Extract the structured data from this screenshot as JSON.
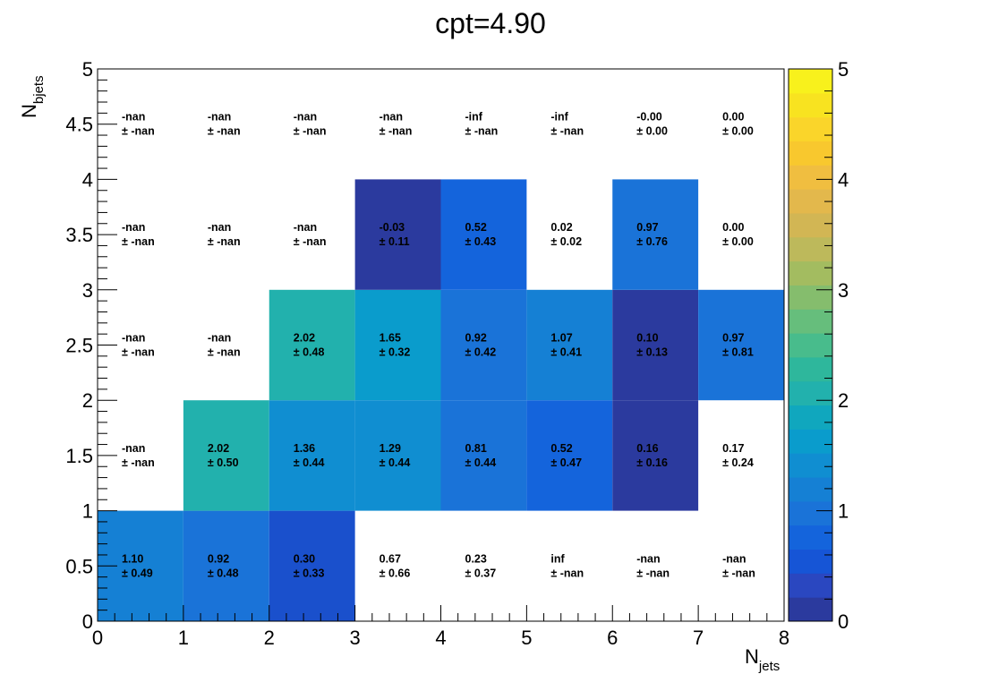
{
  "chart_data": {
    "type": "heatmap",
    "title": "cpt=4.90",
    "xlabel_main": "N",
    "xlabel_sub": "jets",
    "ylabel_main": "N",
    "ylabel_sub": "bjets",
    "xlim": [
      0,
      8
    ],
    "ylim": [
      0,
      5
    ],
    "zlim": [
      0,
      5
    ],
    "x_ticks": [
      "0",
      "1",
      "2",
      "3",
      "4",
      "5",
      "6",
      "7",
      "8"
    ],
    "y_ticks": [
      "0",
      "0.5",
      "1",
      "1.5",
      "2",
      "2.5",
      "3",
      "3.5",
      "4",
      "4.5",
      "5"
    ],
    "z_ticks": [
      "0",
      "1",
      "2",
      "3",
      "4",
      "5"
    ],
    "colorbar_colors": [
      "#2b3a9e",
      "#2a47c0",
      "#1655d6",
      "#1464dc",
      "#1a73d8",
      "#1580d4",
      "#108ed1",
      "#0a9ccc",
      "#10a7be",
      "#22b1ad",
      "#2eb79c",
      "#48bc8c",
      "#66be7c",
      "#85bd6d",
      "#a3bc60",
      "#bdb95b",
      "#d2b654",
      "#e3b84c",
      "#f0be40",
      "#f8c82e",
      "#fad52a",
      "#f8e320",
      "#f8f11c"
    ],
    "cells": [
      {
        "x": 0,
        "y": 0,
        "value": "1.10",
        "error": "± 0.49",
        "fill": "#1580d4"
      },
      {
        "x": 1,
        "y": 0,
        "value": "0.92",
        "error": "± 0.48",
        "fill": "#1a73d8"
      },
      {
        "x": 2,
        "y": 0,
        "value": "0.30",
        "error": "± 0.33",
        "fill": "#1a50cc"
      },
      {
        "x": 3,
        "y": 0,
        "value": "0.67",
        "error": "± 0.66",
        "fill": null
      },
      {
        "x": 4,
        "y": 0,
        "value": "0.23",
        "error": "± 0.37",
        "fill": null
      },
      {
        "x": 5,
        "y": 0,
        "value": "inf",
        "error": "± -nan",
        "fill": null
      },
      {
        "x": 6,
        "y": 0,
        "value": "-nan",
        "error": "± -nan",
        "fill": null
      },
      {
        "x": 7,
        "y": 0,
        "value": "-nan",
        "error": "± -nan",
        "fill": null
      },
      {
        "x": 0,
        "y": 1,
        "value": "-nan",
        "error": "± -nan",
        "fill": null
      },
      {
        "x": 1,
        "y": 1,
        "value": "2.02",
        "error": "± 0.50",
        "fill": "#22b1ad"
      },
      {
        "x": 2,
        "y": 1,
        "value": "1.36",
        "error": "± 0.44",
        "fill": "#108ed1"
      },
      {
        "x": 3,
        "y": 1,
        "value": "1.29",
        "error": "± 0.44",
        "fill": "#108ed1"
      },
      {
        "x": 4,
        "y": 1,
        "value": "0.81",
        "error": "± 0.44",
        "fill": "#1a73d8"
      },
      {
        "x": 5,
        "y": 1,
        "value": "0.52",
        "error": "± 0.47",
        "fill": "#1464dc"
      },
      {
        "x": 6,
        "y": 1,
        "value": "0.16",
        "error": "± 0.16",
        "fill": "#2b3a9e"
      },
      {
        "x": 7,
        "y": 1,
        "value": "0.17",
        "error": "± 0.24",
        "fill": null
      },
      {
        "x": 0,
        "y": 2,
        "value": "-nan",
        "error": "± -nan",
        "fill": null
      },
      {
        "x": 1,
        "y": 2,
        "value": "-nan",
        "error": "± -nan",
        "fill": null
      },
      {
        "x": 2,
        "y": 2,
        "value": "2.02",
        "error": "± 0.48",
        "fill": "#22b1ad"
      },
      {
        "x": 3,
        "y": 2,
        "value": "1.65",
        "error": "± 0.32",
        "fill": "#0a9ccc"
      },
      {
        "x": 4,
        "y": 2,
        "value": "0.92",
        "error": "± 0.42",
        "fill": "#1a73d8"
      },
      {
        "x": 5,
        "y": 2,
        "value": "1.07",
        "error": "± 0.41",
        "fill": "#1580d4"
      },
      {
        "x": 6,
        "y": 2,
        "value": "0.10",
        "error": "± 0.13",
        "fill": "#2b3a9e"
      },
      {
        "x": 7,
        "y": 2,
        "value": "0.97",
        "error": "± 0.81",
        "fill": "#1a73d8"
      },
      {
        "x": 0,
        "y": 3,
        "value": "-nan",
        "error": "± -nan",
        "fill": null
      },
      {
        "x": 1,
        "y": 3,
        "value": "-nan",
        "error": "± -nan",
        "fill": null
      },
      {
        "x": 2,
        "y": 3,
        "value": "-nan",
        "error": "± -nan",
        "fill": null
      },
      {
        "x": 3,
        "y": 3,
        "value": "-0.03",
        "error": "± 0.11",
        "fill": "#2b3a9e"
      },
      {
        "x": 4,
        "y": 3,
        "value": "0.52",
        "error": "± 0.43",
        "fill": "#1464dc"
      },
      {
        "x": 5,
        "y": 3,
        "value": "0.02",
        "error": "± 0.02",
        "fill": null
      },
      {
        "x": 6,
        "y": 3,
        "value": "0.97",
        "error": "± 0.76",
        "fill": "#1a73d8"
      },
      {
        "x": 7,
        "y": 3,
        "value": "0.00",
        "error": "± 0.00",
        "fill": null
      },
      {
        "x": 0,
        "y": 4,
        "value": "-nan",
        "error": "± -nan",
        "fill": null
      },
      {
        "x": 1,
        "y": 4,
        "value": "-nan",
        "error": "± -nan",
        "fill": null
      },
      {
        "x": 2,
        "y": 4,
        "value": "-nan",
        "error": "± -nan",
        "fill": null
      },
      {
        "x": 3,
        "y": 4,
        "value": "-nan",
        "error": "± -nan",
        "fill": null
      },
      {
        "x": 4,
        "y": 4,
        "value": "-inf",
        "error": "± -nan",
        "fill": null
      },
      {
        "x": 5,
        "y": 4,
        "value": "-inf",
        "error": "± -nan",
        "fill": null
      },
      {
        "x": 6,
        "y": 4,
        "value": "-0.00",
        "error": "± 0.00",
        "fill": null
      },
      {
        "x": 7,
        "y": 4,
        "value": "0.00",
        "error": "± 0.00",
        "fill": null
      }
    ]
  }
}
